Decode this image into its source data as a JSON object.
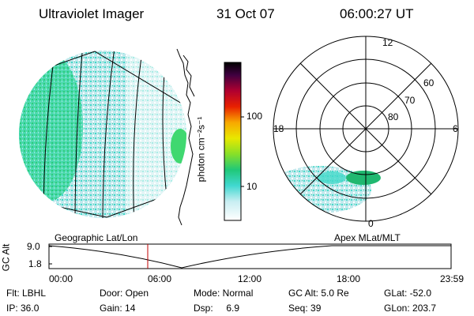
{
  "header": {
    "title": "Ultraviolet Imager",
    "date": "31 Oct 07",
    "time": "06:00:27 UT"
  },
  "colorbar": {
    "unit_label": "photon cm⁻²s⁻¹",
    "ticks": [
      "100",
      "10"
    ],
    "gradient": [
      "#ffffff",
      "#c8e8f0",
      "#40d8d0",
      "#20c878",
      "#88e028",
      "#e8e800",
      "#f8a800",
      "#e82000",
      "#a00040",
      "#300040",
      "#000000"
    ]
  },
  "geographic_map": {
    "caption": "Geographic Lat/Lon",
    "aurora_color": "#40d8a0"
  },
  "polar_plot": {
    "caption": "Apex MLat/MLT",
    "hour_labels": {
      "top": "12",
      "left": "18",
      "right": "6",
      "bottom": "0"
    },
    "lat_labels": [
      "60",
      "70",
      "80"
    ]
  },
  "altitude_panel": {
    "ylabel": "GC Alt",
    "y_ticks": [
      "9.0",
      "1.8"
    ],
    "x_ticks": [
      "00:00",
      "06:00",
      "12:00",
      "18:00",
      "23:59"
    ],
    "current_time_marker_color": "#c00000"
  },
  "status": {
    "flt": "Flt: LBHL",
    "ip": "IP: 36.0",
    "door": "Door: Open",
    "gain": "Gain: 14",
    "mode": "Mode: Normal",
    "dsp": "Dsp:     6.9",
    "gc_alt": "GC Alt: 5.0 Re",
    "seq": "Seq: 39",
    "glat": "GLat: -52.0",
    "glon": "GLon: 203.7"
  }
}
